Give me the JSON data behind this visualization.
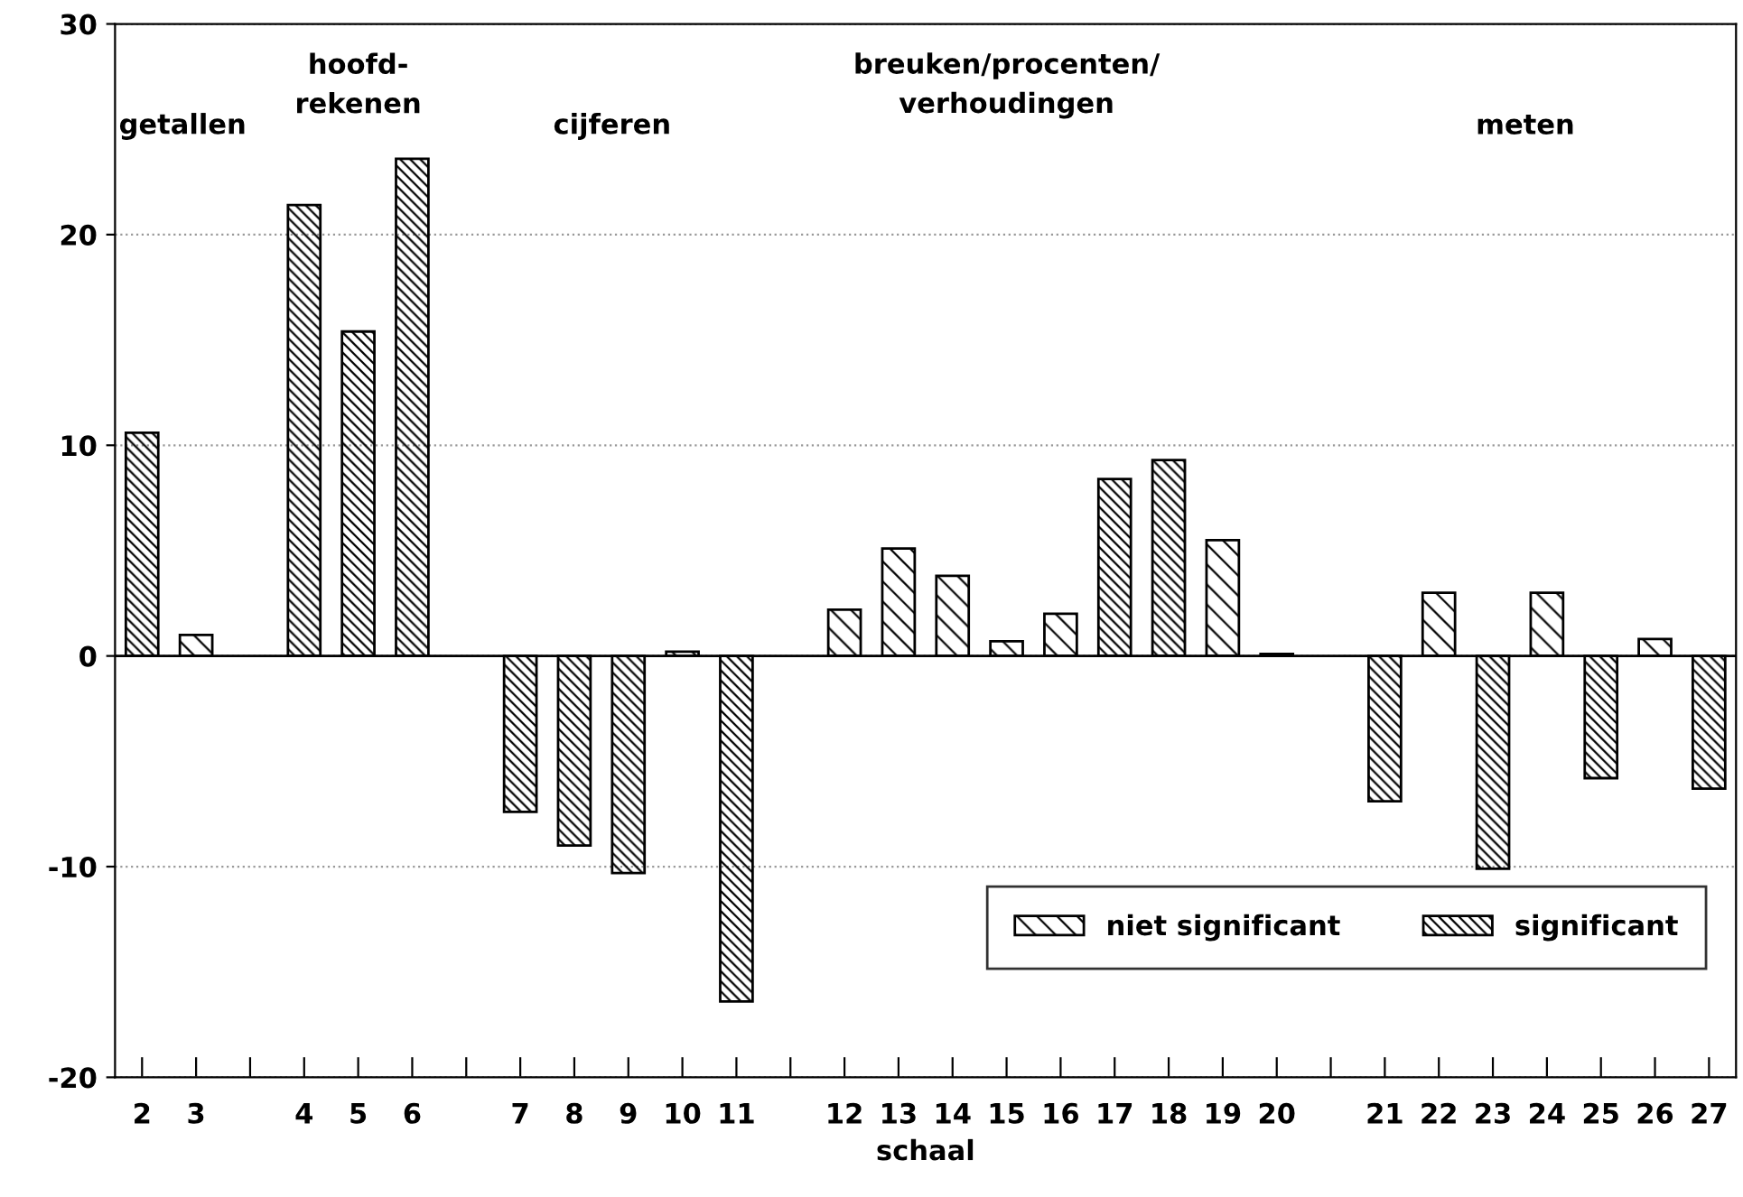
{
  "chart_data": {
    "type": "bar",
    "xlabel": "schaal",
    "categories": [
      "2",
      "3",
      null,
      "4",
      "5",
      "6",
      null,
      "7",
      "8",
      "9",
      "10",
      "11",
      null,
      "12",
      "13",
      "14",
      "15",
      "16",
      "17",
      "18",
      "19",
      "20",
      null,
      "21",
      "22",
      "23",
      "24",
      "25",
      "26",
      "27"
    ],
    "series": [
      {
        "name": "niet significant",
        "color": "#000000",
        "values": [
          null,
          1.0,
          null,
          null,
          null,
          null,
          null,
          null,
          null,
          null,
          0.2,
          null,
          null,
          2.2,
          5.1,
          3.8,
          0.7,
          2.0,
          null,
          null,
          5.5,
          0.1,
          null,
          null,
          3.0,
          null,
          3.0,
          null,
          0.8,
          null
        ]
      },
      {
        "name": "significant",
        "color": "#000000",
        "values": [
          10.6,
          null,
          null,
          21.4,
          15.4,
          23.6,
          null,
          -7.4,
          -9.0,
          -10.3,
          null,
          -16.4,
          null,
          null,
          null,
          null,
          null,
          null,
          8.4,
          9.3,
          null,
          null,
          null,
          -6.9,
          null,
          -10.1,
          null,
          -5.8,
          null,
          -6.3
        ]
      }
    ],
    "ylim": [
      -20,
      30
    ],
    "yticks": [
      -20,
      -10,
      0,
      10,
      20,
      30
    ],
    "grid": "y",
    "legend": "bottom right",
    "ref_lines": [
      {
        "axis": "y",
        "value": 0,
        "color": "#000000",
        "line_style": "solid"
      }
    ],
    "annotations": [
      "getallen",
      "hoofd-\nrekenen",
      "cijferen",
      "breuken/procenten/\nverhoudingen",
      "meten"
    ]
  }
}
